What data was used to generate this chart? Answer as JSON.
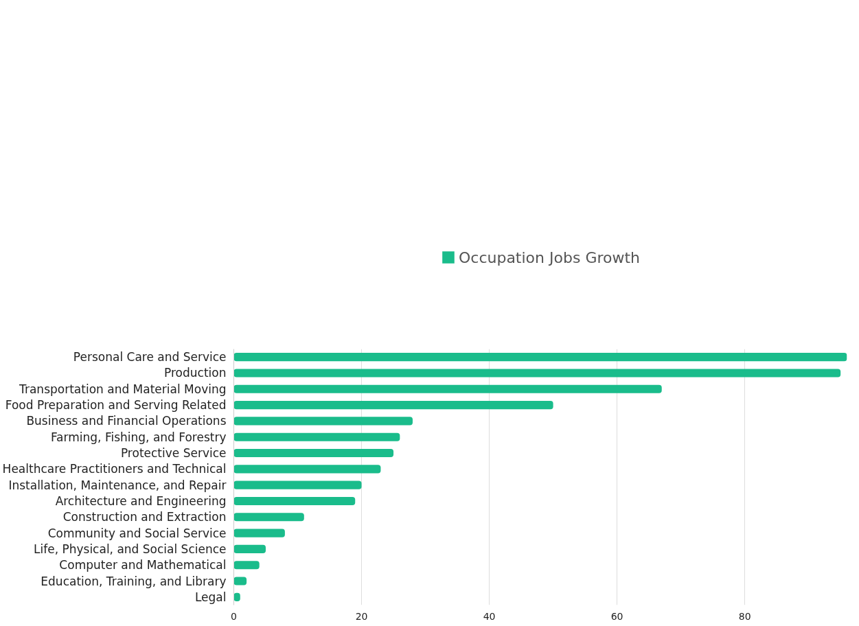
{
  "chart_data": {
    "type": "bar",
    "orientation": "horizontal",
    "categories": [
      "Personal Care and Service",
      "Production",
      "Transportation and Material Moving",
      "Food Preparation and Serving Related",
      "Business and Financial Operations",
      "Farming, Fishing, and Forestry",
      "Protective Service",
      "Healthcare Practitioners and Technical",
      "Installation, Maintenance, and Repair",
      "Architecture and Engineering",
      "Construction and Extraction",
      "Community and Social Service",
      "Life, Physical, and Social Science",
      "Computer and Mathematical",
      "Education, Training, and Library",
      "Legal"
    ],
    "series": [
      {
        "name": "Occupation Jobs Growth",
        "color": "#1abc8b",
        "values": [
          96,
          95,
          67,
          50,
          28,
          26,
          25,
          23,
          20,
          19,
          11,
          8,
          5,
          4,
          2,
          1
        ]
      }
    ],
    "xlim": [
      0,
      96
    ],
    "xticks": [
      0,
      20,
      40,
      60,
      80
    ],
    "grid": "x",
    "legend": "top"
  }
}
